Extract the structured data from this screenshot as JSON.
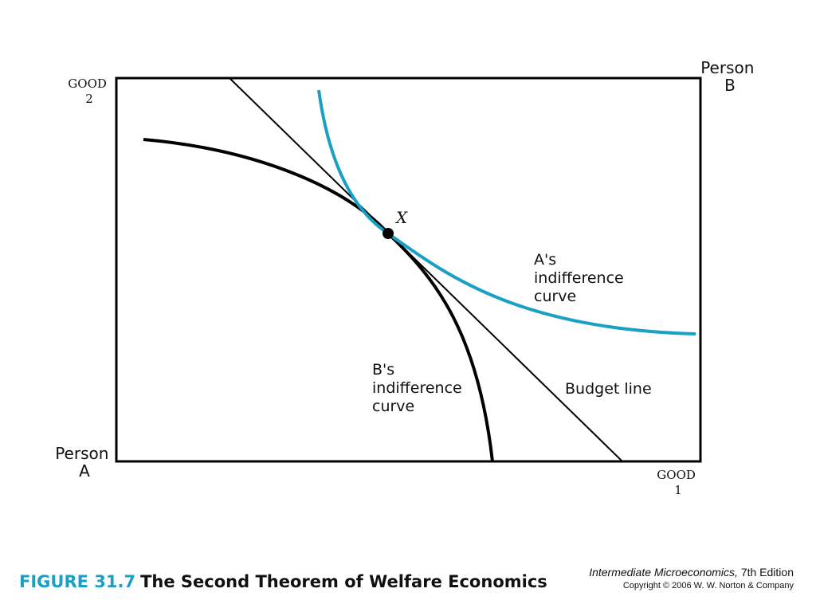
{
  "diagram": {
    "good2_label": [
      "GOOD",
      "2"
    ],
    "good1_label": [
      "GOOD",
      "1"
    ],
    "person_b_label": [
      "Person",
      "B"
    ],
    "person_a_label": [
      "Person",
      "A"
    ],
    "point_label": "X",
    "a_curve_label": [
      "A's",
      "indifference",
      "curve"
    ],
    "b_curve_label": [
      "B's",
      "indifference",
      "curve"
    ],
    "budget_label": "Budget line",
    "colors": {
      "a_curve": "#1aa0c4",
      "b_curve": "#000000",
      "budget_line": "#000000",
      "box": "#000000"
    }
  },
  "caption": {
    "figure_number": "FIGURE 31.7",
    "title": "The Second Theorem of Welfare Economics"
  },
  "credit": {
    "book_title": "Intermediate Microeconomics,",
    "edition": "7th Edition",
    "copyright": "Copyright © 2006 W. W. Norton & Company"
  }
}
